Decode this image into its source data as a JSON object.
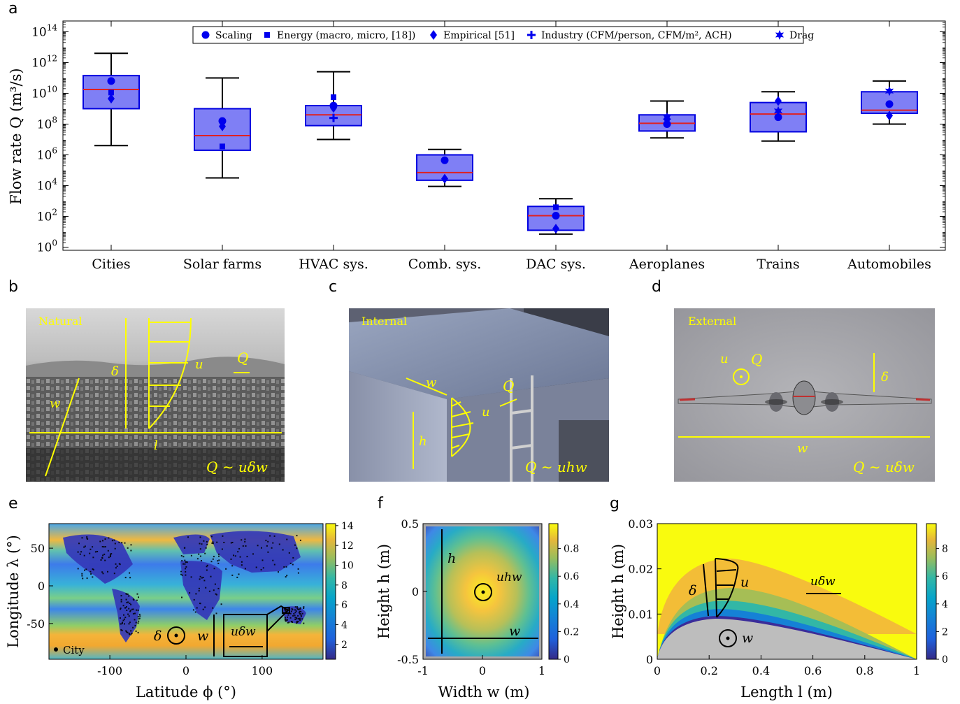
{
  "panel_labels": {
    "a": "a",
    "b": "b",
    "c": "c",
    "d": "d",
    "e": "e",
    "f": "f",
    "g": "g"
  },
  "chart_data": [
    {
      "type": "box",
      "ylabel": "Flow rate Q (m³/s)",
      "yscale": "log",
      "ylim_exp": [
        -0.2,
        14.7
      ],
      "yticks": [
        "10^0",
        "10^2",
        "10^4",
        "10^6",
        "10^8",
        "10^10",
        "10^12",
        "10^14"
      ],
      "legend_placement": "top-center",
      "legend": [
        "Scaling",
        "Energy (macro, micro, [18])",
        "Empirical [51]",
        "Industry (CFM/person, CFM/m², ACH)",
        "Drag"
      ],
      "categories": [
        "Cities",
        "Solar farms",
        "HVAC sys.",
        "Comb. sys.",
        "DAC sys.",
        "Aeroplanes",
        "Trains",
        "Automobiles"
      ],
      "boxes_log10": [
        {
          "whisker_low": 6.6,
          "q1": 9.0,
          "median": 10.25,
          "q3": 11.15,
          "whisker_high": 12.6
        },
        {
          "whisker_low": 4.5,
          "q1": 6.3,
          "median": 7.25,
          "q3": 9.0,
          "whisker_high": 11.0
        },
        {
          "whisker_low": 7.0,
          "q1": 7.9,
          "median": 8.6,
          "q3": 9.2,
          "whisker_high": 11.4
        },
        {
          "whisker_low": 3.95,
          "q1": 4.35,
          "median": 4.85,
          "q3": 6.0,
          "whisker_high": 6.35
        },
        {
          "whisker_low": 0.85,
          "q1": 1.1,
          "median": 2.05,
          "q3": 2.65,
          "whisker_high": 3.15
        },
        {
          "whisker_low": 7.1,
          "q1": 7.55,
          "median": 8.05,
          "q3": 8.6,
          "whisker_high": 9.5
        },
        {
          "whisker_low": 6.9,
          "q1": 7.5,
          "median": 8.65,
          "q3": 9.4,
          "whisker_high": 10.1
        },
        {
          "whisker_low": 8.0,
          "q1": 8.7,
          "median": 8.9,
          "q3": 10.1,
          "whisker_high": 10.8
        }
      ],
      "points_log10": [
        [
          {
            "m": "Scaling",
            "y": 10.8
          },
          {
            "m": "Energy",
            "y": 10.05
          },
          {
            "m": "Empirical",
            "y": 9.65
          }
        ],
        [
          {
            "m": "Scaling",
            "y": 8.2
          },
          {
            "m": "Empirical",
            "y": 7.85
          },
          {
            "m": "Energy",
            "y": 6.55
          }
        ],
        [
          {
            "m": "Energy",
            "y": 9.75
          },
          {
            "m": "Empirical",
            "y": 9.05
          },
          {
            "m": "Scaling",
            "y": 9.2
          },
          {
            "m": "Industry",
            "y": 8.4
          }
        ],
        [
          {
            "m": "Scaling",
            "y": 5.65
          },
          {
            "m": "Empirical",
            "y": 4.45
          }
        ],
        [
          {
            "m": "Energy",
            "y": 2.6
          },
          {
            "m": "Scaling",
            "y": 2.05
          },
          {
            "m": "Empirical",
            "y": 1.2
          }
        ],
        [
          {
            "m": "Scaling",
            "y": 8.0
          },
          {
            "m": "Empirical",
            "y": 8.3
          },
          {
            "m": "Drag",
            "y": 8.45
          }
        ],
        [
          {
            "m": "Empirical",
            "y": 9.5
          },
          {
            "m": "Drag",
            "y": 8.85
          },
          {
            "m": "Scaling",
            "y": 8.45
          }
        ],
        [
          {
            "m": "Drag",
            "y": 10.15
          },
          {
            "m": "Scaling",
            "y": 9.3
          },
          {
            "m": "Empirical",
            "y": 8.55
          }
        ]
      ]
    },
    {
      "type": "heatmap",
      "xlabel": "Latitude ϕ (°)",
      "ylabel": "Longitude λ (°)",
      "xticks": [
        "-100",
        "0",
        "100"
      ],
      "yticks": [
        "50",
        "0",
        "-50"
      ],
      "colorbar_ticks": [
        "2",
        "4",
        "6",
        "8",
        "10",
        "12",
        "14"
      ],
      "legend": "City",
      "annotations": [
        "δ",
        "w",
        "uδw"
      ]
    },
    {
      "type": "heatmap",
      "xlabel": "Width w (m)",
      "ylabel": "Height h (m)",
      "xticks": [
        "-1",
        "0",
        "1"
      ],
      "yticks": [
        "0.5",
        "0",
        "-0.5"
      ],
      "colorbar_ticks": [
        "0",
        "0.2",
        "0.4",
        "0.6",
        "0.8"
      ],
      "annotations": [
        "h",
        "w",
        "uhw"
      ]
    },
    {
      "type": "heatmap",
      "xlabel": "Length l (m)",
      "ylabel": "Height h (m)",
      "xticks": [
        "0",
        "0.2",
        "0.4",
        "0.6",
        "0.8",
        "1"
      ],
      "yticks": [
        "0",
        "0.01",
        "0.02",
        "0.03"
      ],
      "colorbar_ticks": [
        "0",
        "2",
        "4",
        "6",
        "8"
      ],
      "annotations": [
        "δ",
        "u",
        "uδw",
        "w"
      ]
    }
  ],
  "photos": {
    "b": {
      "tag": "Natural",
      "labels": [
        "δ",
        "u",
        "Q",
        "w",
        "l"
      ],
      "formula": "Q ∼ uδw"
    },
    "c": {
      "tag": "Internal",
      "labels": [
        "w",
        "u",
        "Q",
        "h"
      ],
      "formula": "Q ∼ uhw"
    },
    "d": {
      "tag": "External",
      "labels": [
        "u",
        "Q",
        "δ",
        "w"
      ],
      "formula": "Q ∼ uδw"
    }
  },
  "colors": {
    "box_fill": "#7f7ff5",
    "box_edge": "#0000e0",
    "median": "#e02020",
    "marker": "#0000ee",
    "annotation": "#ffff00"
  }
}
